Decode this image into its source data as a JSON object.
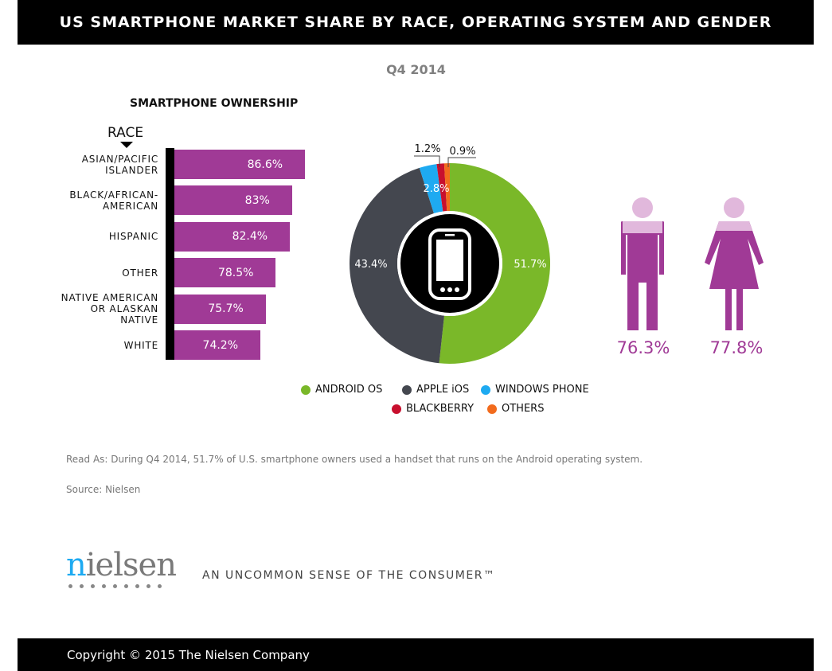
{
  "title": "US SMARTPHONE MARKET SHARE BY RACE, OPERATING SYSTEM AND GENDER",
  "subtitle": "Q4 2014",
  "chart_data": [
    {
      "type": "bar",
      "orientation": "horizontal",
      "title": "SMARTPHONE OWNERSHIP",
      "axis_label": "RACE",
      "categories": [
        "ASIAN/PACIFIC ISLANDER",
        "BLACK/AFRICAN-AMERICAN",
        "HISPANIC",
        "OTHER",
        "NATIVE AMERICAN OR ALASKAN NATIVE",
        "WHITE"
      ],
      "category_lines": [
        [
          "ASIAN/PACIFIC",
          "ISLANDER"
        ],
        [
          "BLACK/AFRICAN-",
          "AMERICAN"
        ],
        [
          "HISPANIC"
        ],
        [
          "OTHER"
        ],
        [
          "NATIVE AMERICAN",
          "OR ALASKAN",
          "NATIVE"
        ],
        [
          "WHITE"
        ]
      ],
      "values": [
        86.6,
        83,
        82.4,
        78.5,
        75.7,
        74.2
      ],
      "labels": [
        "86.6%",
        "83%",
        "82.4%",
        "78.5%",
        "75.7%",
        "74.2%"
      ],
      "color": "#a03a96"
    },
    {
      "type": "pie",
      "style": "donut",
      "center_icon": "smartphone-icon",
      "slices": [
        {
          "name": "ANDROID OS",
          "value": 51.7,
          "label": "51.7%",
          "color": "#7ab829"
        },
        {
          "name": "APPLE iOS",
          "value": 43.4,
          "label": "43.4%",
          "color": "#44474f"
        },
        {
          "name": "WINDOWS PHONE",
          "value": 2.8,
          "label": "2.8%",
          "color": "#1eaaf1"
        },
        {
          "name": "BLACKBERRY",
          "value": 1.2,
          "label": "1.2%",
          "color": "#c8102e"
        },
        {
          "name": "OTHERS",
          "value": 0.9,
          "label": "0.9%",
          "color": "#f26b1d"
        }
      ],
      "legend_placement": "bottom"
    },
    {
      "type": "pictogram",
      "categories": [
        "male",
        "female"
      ],
      "values": [
        76.3,
        77.8
      ],
      "labels": [
        "76.3%",
        "77.8%"
      ],
      "color": "#a03a96"
    }
  ],
  "read_as": "Read As: During Q4 2014, 51.7% of U.S. smartphone owners used a handset that runs on the Android operating system.",
  "source": "Source: Nielsen",
  "logo": "nielsen",
  "tagline": "AN UNCOMMON SENSE OF THE CONSUMER™",
  "copyright": "Copyright © 2015 The Nielsen Company"
}
